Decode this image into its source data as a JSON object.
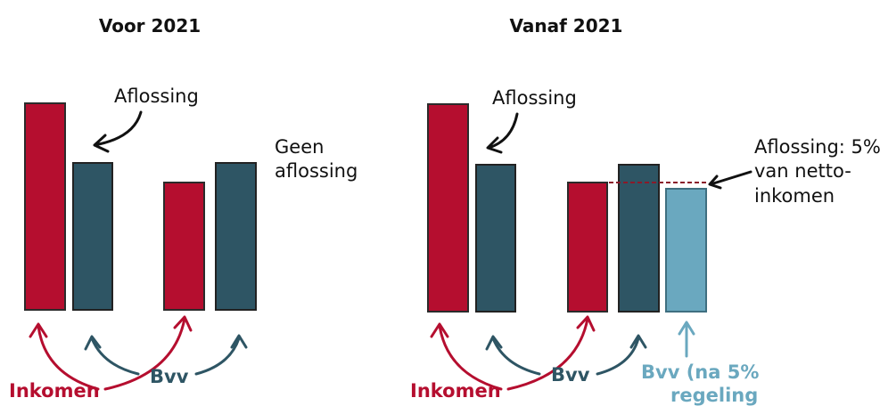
{
  "left": {
    "title": "Voor 2021",
    "annotation": "Aflossing",
    "note": [
      "Geen",
      "aflossing"
    ],
    "income_label": "Inkomen",
    "bvv_label": "Bvv"
  },
  "right": {
    "title": "Vanaf 2021",
    "annotation": "Aflossing",
    "note": [
      "Aflossing: 5%",
      "van netto-",
      "inkomen"
    ],
    "income_label": "Inkomen",
    "bvv_label": "Bvv",
    "bvv5_label": [
      "Bvv (na 5%",
      "regeling"
    ]
  }
}
